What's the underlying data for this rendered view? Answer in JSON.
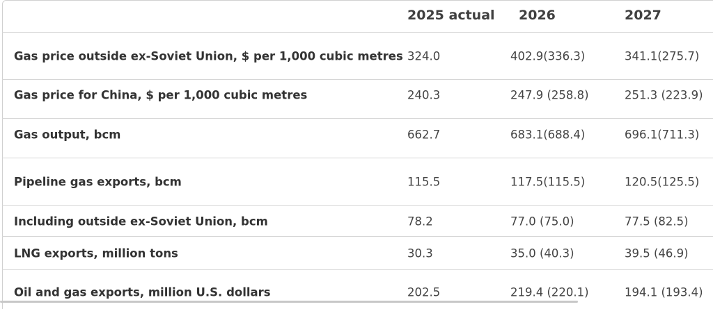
{
  "table": {
    "columns": [
      "2025 actual",
      "2026",
      "2027"
    ],
    "rows": [
      [
        "Gas price outside ex-Soviet Union, $ per 1,000 cubic metres",
        "324.0",
        "402.9(336.3)",
        "341.1(275.7)"
      ],
      [
        "Gas price for China, $ per 1,000 cubic metres",
        "240.3",
        "247.9 (258.8)",
        "251.3 (223.9)"
      ],
      [
        "Gas output, bcm",
        "662.7",
        "683.1(688.4)",
        "696.1(711.3)"
      ],
      [
        "Pipeline gas exports, bcm",
        "115.5",
        "117.5(115.5)",
        "120.5(125.5)"
      ],
      [
        "Including outside ex-Soviet Union, bcm",
        "78.2",
        "77.0 (75.0)",
        "77.5 (82.5)"
      ],
      [
        "LNG exports, million tons",
        "30.3",
        "35.0 (40.3)",
        "39.5 (46.9)"
      ],
      [
        "Oil and gas exports, million U.S. dollars",
        "202.5",
        "219.4 (220.1)",
        "194.1 (193.4)"
      ]
    ]
  }
}
